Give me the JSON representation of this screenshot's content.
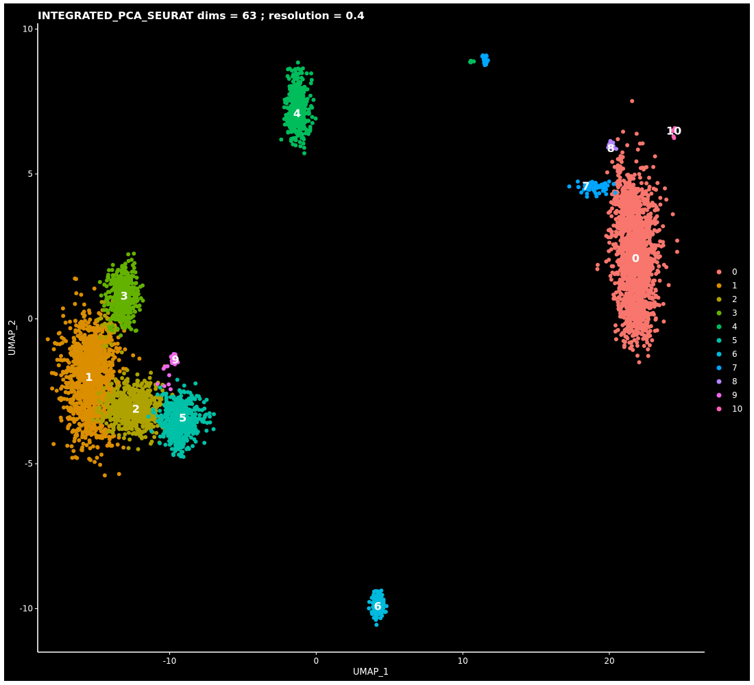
{
  "chart_data": {
    "type": "scatter",
    "title": "INTEGRATED_PCA_SEURAT dims =  63 ; resolution = 0.4",
    "xlabel": "UMAP_1",
    "ylabel": "UMAP_2",
    "xlim": [
      -19,
      26.5
    ],
    "ylim": [
      -11.5,
      10.2
    ],
    "x_ticks": [
      -10,
      0,
      10,
      20
    ],
    "y_ticks": [
      10,
      5,
      0,
      -5,
      -10
    ],
    "x_tick_labels": [
      "-10",
      "0",
      "10",
      "20"
    ],
    "y_tick_labels": [
      "10",
      "5",
      "0",
      "-5",
      "-10"
    ],
    "grid": false,
    "legend_position": "right",
    "clusters": [
      {
        "id": "0",
        "color": "#F8766D",
        "label_pos": [
          21.8,
          2.1
        ],
        "blobs": [
          {
            "cx": 21.8,
            "cy": 2.2,
            "sx": 0.75,
            "sy": 1.3,
            "n": 1400
          },
          {
            "cx": 21.9,
            "cy": 0.2,
            "sx": 0.5,
            "sy": 0.5,
            "n": 250
          },
          {
            "cx": 21.2,
            "cy": 4.1,
            "sx": 0.45,
            "sy": 0.35,
            "n": 120
          },
          {
            "cx": 20.7,
            "cy": 5.1,
            "sx": 0.1,
            "sy": 0.35,
            "n": 25
          }
        ]
      },
      {
        "id": "1",
        "color": "#DB8E00",
        "label_pos": [
          -15.5,
          -2.0
        ],
        "blobs": [
          {
            "cx": -15.4,
            "cy": -2.1,
            "sx": 0.9,
            "sy": 1.05,
            "n": 1300
          }
        ]
      },
      {
        "id": "2",
        "color": "#AEA200",
        "label_pos": [
          -12.3,
          -3.1
        ],
        "blobs": [
          {
            "cx": -12.5,
            "cy": -3.1,
            "sx": 1.0,
            "sy": 0.45,
            "n": 650
          },
          {
            "cx": -14.0,
            "cy": -0.2,
            "sx": 0.5,
            "sy": 0.4,
            "n": 40
          }
        ]
      },
      {
        "id": "3",
        "color": "#64B200",
        "label_pos": [
          -13.1,
          0.8
        ],
        "blobs": [
          {
            "cx": -13.2,
            "cy": 0.8,
            "sx": 0.5,
            "sy": 0.55,
            "n": 450
          }
        ]
      },
      {
        "id": "4",
        "color": "#00BD5C",
        "label_pos": [
          -1.3,
          7.1
        ],
        "blobs": [
          {
            "cx": -1.25,
            "cy": 7.3,
            "sx": 0.38,
            "sy": 0.55,
            "n": 450
          },
          {
            "cx": 10.6,
            "cy": 8.9,
            "sx": 0.08,
            "sy": 0.05,
            "n": 5
          }
        ]
      },
      {
        "id": "5",
        "color": "#00C1A7",
        "label_pos": [
          -9.1,
          -3.4
        ],
        "blobs": [
          {
            "cx": -9.3,
            "cy": -3.4,
            "sx": 0.75,
            "sy": 0.45,
            "n": 500
          },
          {
            "cx": -9.4,
            "cy": -4.2,
            "sx": 0.3,
            "sy": 0.25,
            "n": 80
          }
        ]
      },
      {
        "id": "6",
        "color": "#00BADE",
        "label_pos": [
          4.2,
          -9.9
        ],
        "blobs": [
          {
            "cx": 4.2,
            "cy": -9.9,
            "sx": 0.22,
            "sy": 0.22,
            "n": 160
          }
        ]
      },
      {
        "id": "7",
        "color": "#00A6FF",
        "label_pos": [
          18.4,
          4.6
        ],
        "blobs": [
          {
            "cx": 19.0,
            "cy": 4.55,
            "sx": 0.55,
            "sy": 0.12,
            "n": 60
          },
          {
            "cx": 11.5,
            "cy": 8.95,
            "sx": 0.1,
            "sy": 0.1,
            "n": 25
          }
        ]
      },
      {
        "id": "8",
        "color": "#B385FF",
        "label_pos": [
          20.1,
          5.9
        ],
        "blobs": [
          {
            "cx": 20.1,
            "cy": 6.0,
            "sx": 0.12,
            "sy": 0.1,
            "n": 18
          }
        ]
      },
      {
        "id": "9",
        "color": "#EF67EB",
        "label_pos": [
          -9.6,
          -1.4
        ],
        "blobs": [
          {
            "cx": -9.7,
            "cy": -1.4,
            "sx": 0.15,
            "sy": 0.12,
            "n": 18
          },
          {
            "cx": -10.2,
            "cy": -2.0,
            "sx": 0.35,
            "sy": 0.3,
            "n": 8
          }
        ]
      },
      {
        "id": "10",
        "color": "#FF63B6",
        "label_pos": [
          24.4,
          6.5
        ],
        "blobs": [
          {
            "cx": 24.4,
            "cy": 6.45,
            "sx": 0.08,
            "sy": 0.1,
            "n": 8
          }
        ]
      }
    ]
  }
}
